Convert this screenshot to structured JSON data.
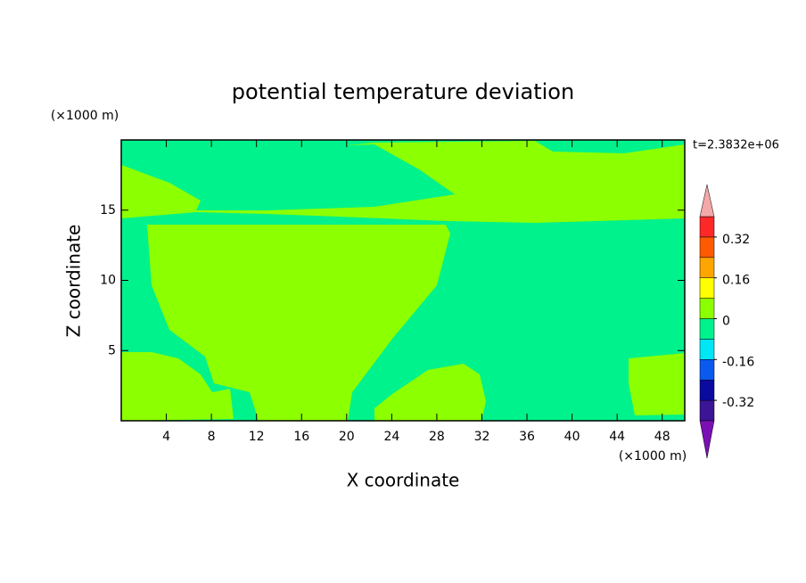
{
  "chart_data": {
    "type": "contour",
    "title": "potential temperature deviation",
    "xlabel": "X coordinate",
    "ylabel": "Z coordinate",
    "x_unit": "(×1000 m)",
    "y_unit": "(×1000 m)",
    "time_label": "t=2.3832e+06",
    "xlim": [
      0,
      50
    ],
    "ylim": [
      0,
      20
    ],
    "xticks": [
      4,
      8,
      12,
      16,
      20,
      24,
      28,
      32,
      36,
      40,
      44,
      48
    ],
    "yticks": [
      5,
      10,
      15
    ],
    "colorbar": {
      "levels": [
        -0.4,
        -0.32,
        -0.24,
        -0.16,
        -0.08,
        0,
        0.08,
        0.16,
        0.24,
        0.32,
        0.4
      ],
      "colors": [
        "#3c1496",
        "#0a0aa0",
        "#0a5af0",
        "#00e6f5",
        "#00f28c",
        "#8cff00",
        "#ffff00",
        "#ffa500",
        "#ff5a00",
        "#ff2828"
      ],
      "under_color": "#7a10b4",
      "over_color": "#f4a8a8",
      "ticks": [
        -0.32,
        -0.16,
        0,
        0.16,
        0.32
      ]
    }
  }
}
